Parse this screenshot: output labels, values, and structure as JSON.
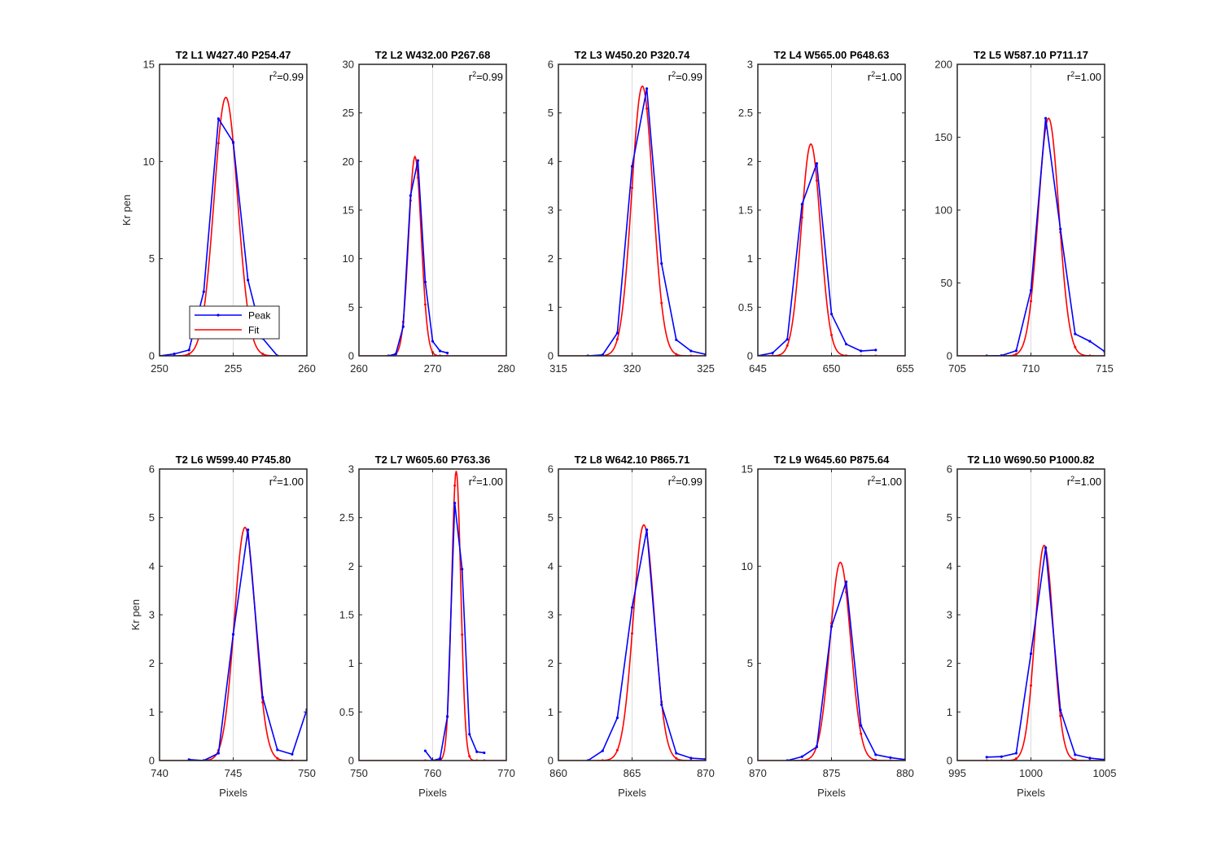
{
  "figure": {
    "ylabel": "Kr pen",
    "xlabel": "Pixels"
  },
  "colors": {
    "peak": "#0000ff",
    "fit": "#ff0000"
  },
  "legend": {
    "peak_label": "Peak",
    "fit_label": "Fit",
    "placement": "lower-left of first panel"
  },
  "chart_data": [
    {
      "type": "line",
      "title": "T2 L1 W427.40 P254.47",
      "r2": "0.99",
      "xlim": [
        250,
        260
      ],
      "ylim": [
        0,
        15
      ],
      "xticks": [
        250,
        255,
        260
      ],
      "yticks": [
        0,
        5,
        10,
        15
      ],
      "grid": "at x=255",
      "peak": {
        "x": [
          250,
          251,
          252,
          253,
          254,
          255,
          256,
          257,
          258
        ],
        "y": [
          0.0,
          0.1,
          0.3,
          3.3,
          12.2,
          11.0,
          3.9,
          0.9,
          0.0
        ]
      },
      "fit": {
        "amp": 13.3,
        "center": 254.5,
        "sigma": 0.8
      }
    },
    {
      "type": "line",
      "title": "T2 L2 W432.00 P267.68",
      "r2": "0.99",
      "xlim": [
        260,
        280
      ],
      "ylim": [
        0,
        30
      ],
      "xticks": [
        260,
        270,
        280
      ],
      "yticks": [
        0,
        5,
        10,
        15,
        20,
        25,
        30
      ],
      "grid": "at x=270",
      "peak": {
        "x": [
          264,
          265,
          266,
          267,
          268,
          269,
          270,
          271,
          272
        ],
        "y": [
          0.0,
          0.2,
          3.0,
          16.5,
          20.1,
          7.6,
          1.5,
          0.5,
          0.3
        ]
      },
      "fit": {
        "amp": 20.5,
        "center": 267.6,
        "sigma": 0.85
      }
    },
    {
      "type": "line",
      "title": "T2 L3 W450.20 P320.74",
      "r2": "0.99",
      "xlim": [
        315,
        325
      ],
      "ylim": [
        0,
        6
      ],
      "xticks": [
        315,
        320,
        325
      ],
      "yticks": [
        0,
        1,
        2,
        3,
        4,
        5,
        6
      ],
      "grid": "at x=320",
      "peak": {
        "x": [
          317,
          318,
          319,
          320,
          321,
          322,
          323,
          324,
          325
        ],
        "y": [
          0.0,
          0.02,
          0.47,
          3.9,
          5.5,
          1.9,
          0.33,
          0.1,
          0.03
        ]
      },
      "fit": {
        "amp": 5.55,
        "center": 320.7,
        "sigma": 0.72
      }
    },
    {
      "type": "line",
      "title": "T2 L4 W565.00 P648.63",
      "r2": "1.00",
      "xlim": [
        645,
        655
      ],
      "ylim": [
        0,
        3
      ],
      "xticks": [
        645,
        650,
        655
      ],
      "yticks": [
        0,
        0.5,
        1,
        1.5,
        2,
        2.5,
        3
      ],
      "grid": "at x=650",
      "peak": {
        "x": [
          645,
          646,
          647,
          648,
          649,
          650,
          651,
          652,
          653
        ],
        "y": [
          0.0,
          0.03,
          0.17,
          1.56,
          1.98,
          0.43,
          0.12,
          0.05,
          0.06
        ]
      },
      "fit": {
        "amp": 2.18,
        "center": 648.6,
        "sigma": 0.65
      }
    },
    {
      "type": "line",
      "title": "T2 L5 W587.10 P711.17",
      "r2": "1.00",
      "xlim": [
        705,
        715
      ],
      "ylim": [
        0,
        200
      ],
      "xticks": [
        705,
        710,
        715
      ],
      "yticks": [
        0,
        50,
        100,
        150,
        200
      ],
      "grid": "at x=710",
      "peak": {
        "x": [
          707,
          708,
          709,
          710,
          711,
          712,
          713,
          714,
          715
        ],
        "y": [
          0.0,
          0.2,
          3.5,
          45,
          163,
          87,
          15,
          10,
          3
        ]
      },
      "fit": {
        "amp": 163,
        "center": 711.2,
        "sigma": 0.7
      }
    },
    {
      "type": "line",
      "title": "T2 L6 W599.40 P745.80",
      "r2": "1.00",
      "xlim": [
        740,
        750
      ],
      "ylim": [
        0,
        6
      ],
      "xticks": [
        740,
        745,
        750
      ],
      "yticks": [
        0,
        1,
        2,
        3,
        4,
        5,
        6
      ],
      "grid": "at x=745",
      "peak": {
        "x": [
          742,
          743,
          744,
          745,
          746,
          747,
          748,
          749,
          750
        ],
        "y": [
          0.02,
          0.0,
          0.15,
          2.6,
          4.75,
          1.3,
          0.22,
          0.13,
          1.05
        ]
      },
      "fit": {
        "amp": 4.8,
        "center": 745.8,
        "sigma": 0.72
      }
    },
    {
      "type": "line",
      "title": "T2 L7 W605.60 P763.36",
      "r2": "1.00",
      "xlim": [
        750,
        770
      ],
      "ylim": [
        0,
        3
      ],
      "xticks": [
        750,
        760,
        770
      ],
      "yticks": [
        0,
        0.5,
        1,
        1.5,
        2,
        2.5,
        3
      ],
      "grid": "at x=760",
      "peak": {
        "x": [
          759,
          760,
          761,
          762,
          763,
          764,
          765,
          766,
          767
        ],
        "y": [
          0.1,
          0.0,
          0.02,
          0.45,
          2.65,
          1.97,
          0.27,
          0.09,
          0.08
        ]
      },
      "fit": {
        "amp": 2.98,
        "center": 763.2,
        "sigma": 0.62
      }
    },
    {
      "type": "line",
      "title": "T2 L8 W642.10 P865.71",
      "r2": "0.99",
      "xlim": [
        860,
        870
      ],
      "ylim": [
        0,
        6
      ],
      "xticks": [
        860,
        865,
        870
      ],
      "yticks": [
        0,
        1,
        2,
        3,
        4,
        5,
        6
      ],
      "grid": "at x=865",
      "peak": {
        "x": [
          862,
          863,
          864,
          865,
          866,
          867,
          868,
          869,
          870
        ],
        "y": [
          0.0,
          0.2,
          0.88,
          3.15,
          4.75,
          1.15,
          0.15,
          0.05,
          0.03
        ]
      },
      "fit": {
        "amp": 4.85,
        "center": 865.8,
        "sigma": 0.72
      }
    },
    {
      "type": "line",
      "title": "T2 L9 W645.60 P875.64",
      "r2": "1.00",
      "xlim": [
        870,
        880
      ],
      "ylim": [
        0,
        15
      ],
      "xticks": [
        870,
        875,
        880
      ],
      "yticks": [
        0,
        5,
        10,
        15
      ],
      "grid": "at x=875",
      "peak": {
        "x": [
          872,
          873,
          874,
          875,
          876,
          877,
          878,
          879,
          880
        ],
        "y": [
          0.0,
          0.2,
          0.7,
          6.9,
          9.2,
          1.8,
          0.3,
          0.15,
          0.05
        ]
      },
      "fit": {
        "amp": 10.2,
        "center": 875.6,
        "sigma": 0.7
      }
    },
    {
      "type": "line",
      "title": "T2 L10 W690.50 P1000.82",
      "r2": "1.00",
      "xlim": [
        995,
        1005
      ],
      "ylim": [
        0,
        6
      ],
      "xticks": [
        995,
        1000,
        1005
      ],
      "yticks": [
        0,
        1,
        2,
        3,
        4,
        5,
        6
      ],
      "grid": "at x=1000",
      "peak": {
        "x": [
          997,
          998,
          999,
          1000,
          1001,
          1002,
          1003,
          1004,
          1005
        ],
        "y": [
          0.07,
          0.08,
          0.15,
          2.2,
          4.38,
          1.04,
          0.12,
          0.05,
          0.02
        ]
      },
      "fit": {
        "amp": 4.43,
        "center": 1000.9,
        "sigma": 0.62
      }
    }
  ]
}
